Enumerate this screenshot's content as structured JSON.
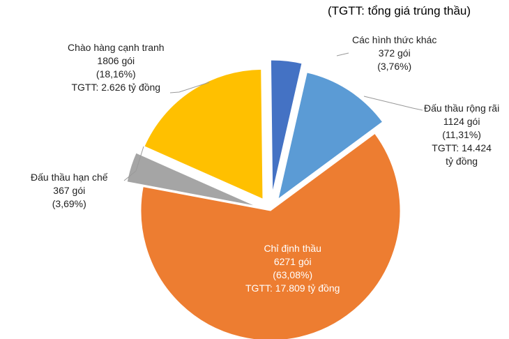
{
  "note": "(TGTT: tổng giá trúng thầu)",
  "colors": {
    "chi_dinh_thau": "#ED7D31",
    "dau_thau_han_che": "#A5A5A5",
    "chao_hang_canh_tranh": "#FFC000",
    "cac_hinh_thuc_khac": "#4472C4",
    "dau_thau_rong_rai": "#5B9BD5",
    "leader": "#999999"
  },
  "chart_data": {
    "type": "pie",
    "note": "(TGTT: tổng giá trúng thầu)",
    "slices": [
      {
        "name": "Các hình thức khác",
        "packages": "372 gói",
        "percent_label": "(3,76%)",
        "value": 3.76,
        "tgtt": ""
      },
      {
        "name": "Đấu thầu rộng rãi",
        "packages": "1124 gói",
        "percent_label": "(11,31%)",
        "value": 11.31,
        "tgtt": "TGTT: 14.424 tỷ đồng"
      },
      {
        "name": "Chỉ định thầu",
        "packages": "6271 gói",
        "percent_label": "(63,08%)",
        "value": 63.08,
        "tgtt": "TGTT: 17.809 tỷ đồng"
      },
      {
        "name": "Đấu thầu hạn chế",
        "packages": "367 gói",
        "percent_label": "(3,69%)",
        "value": 3.69,
        "tgtt": ""
      },
      {
        "name": "Chào hàng cạnh tranh",
        "packages": "1806 gói",
        "percent_label": "(18,16%)",
        "value": 18.16,
        "tgtt": "TGTT: 2.626 tỷ đồng"
      }
    ]
  }
}
